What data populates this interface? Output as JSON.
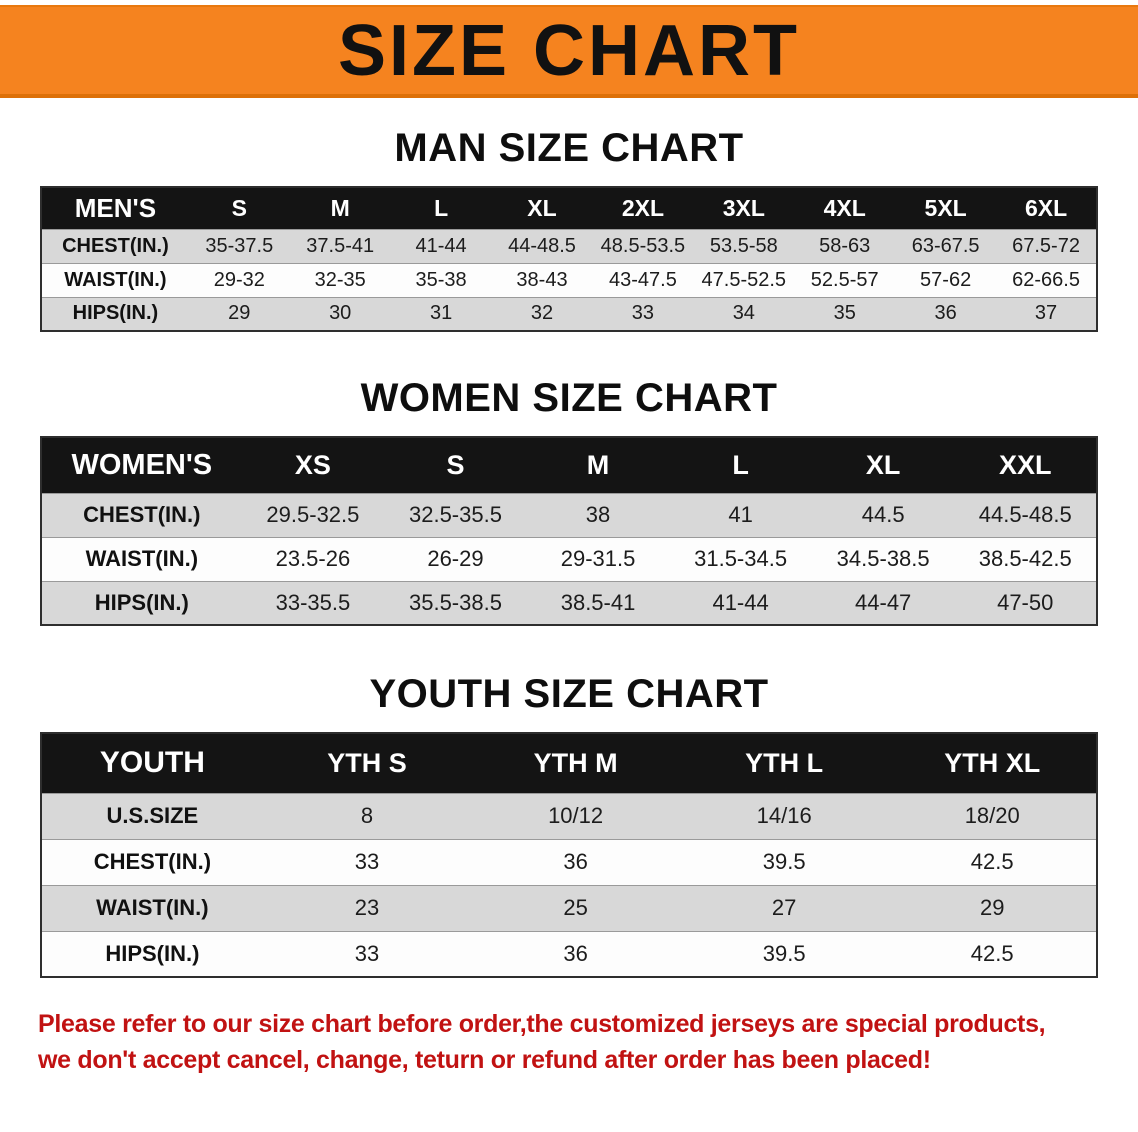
{
  "banner": {
    "title": "SIZE CHART",
    "bg_color": "#f5831f",
    "text_color": "#111111"
  },
  "colors": {
    "table_header_bar": "#141414",
    "row_stripe": "#d8d8d8"
  },
  "sections": [
    {
      "heading": "MAN SIZE CHART",
      "table": {
        "name": "mens",
        "header": [
          "MEN'S",
          "S",
          "M",
          "L",
          "XL",
          "2XL",
          "3XL",
          "4XL",
          "5XL",
          "6XL"
        ],
        "rows": [
          {
            "label": "CHEST(IN.)",
            "values": [
              "35-37.5",
              "37.5-41",
              "41-44",
              "44-48.5",
              "48.5-53.5",
              "53.5-58",
              "58-63",
              "63-67.5",
              "67.5-72"
            ]
          },
          {
            "label": "WAIST(IN.)",
            "values": [
              "29-32",
              "32-35",
              "35-38",
              "38-43",
              "43-47.5",
              "47.5-52.5",
              "52.5-57",
              "57-62",
              "62-66.5"
            ]
          },
          {
            "label": "HIPS(IN.)",
            "values": [
              "29",
              "30",
              "31",
              "32",
              "33",
              "34",
              "35",
              "36",
              "37"
            ]
          }
        ]
      }
    },
    {
      "heading": "WOMEN SIZE CHART",
      "table": {
        "name": "womens",
        "header": [
          "WOMEN'S",
          "XS",
          "S",
          "M",
          "L",
          "XL",
          "XXL"
        ],
        "rows": [
          {
            "label": "CHEST(IN.)",
            "values": [
              "29.5-32.5",
              "32.5-35.5",
              "38",
              "41",
              "44.5",
              "44.5-48.5"
            ]
          },
          {
            "label": "WAIST(IN.)",
            "values": [
              "23.5-26",
              "26-29",
              "29-31.5",
              "31.5-34.5",
              "34.5-38.5",
              "38.5-42.5"
            ]
          },
          {
            "label": "HIPS(IN.)",
            "values": [
              "33-35.5",
              "35.5-38.5",
              "38.5-41",
              "41-44",
              "44-47",
              "47-50"
            ]
          }
        ]
      }
    },
    {
      "heading": "YOUTH SIZE CHART",
      "table": {
        "name": "youth",
        "header": [
          "YOUTH",
          "YTH S",
          "YTH M",
          "YTH L",
          "YTH XL"
        ],
        "rows": [
          {
            "label": "U.S.SIZE",
            "values": [
              "8",
              "10/12",
              "14/16",
              "18/20"
            ]
          },
          {
            "label": "CHEST(IN.)",
            "values": [
              "33",
              "36",
              "39.5",
              "42.5"
            ]
          },
          {
            "label": "WAIST(IN.)",
            "values": [
              "23",
              "25",
              "27",
              "29"
            ]
          },
          {
            "label": "HIPS(IN.)",
            "values": [
              "33",
              "36",
              "39.5",
              "42.5"
            ]
          }
        ]
      }
    }
  ],
  "disclaimer": {
    "lines": [
      "Please refer to our size chart before order,the customized jerseys are special products,",
      "we don't accept cancel, change, teturn or refund after order has been placed!"
    ],
    "color": "#c11212"
  }
}
